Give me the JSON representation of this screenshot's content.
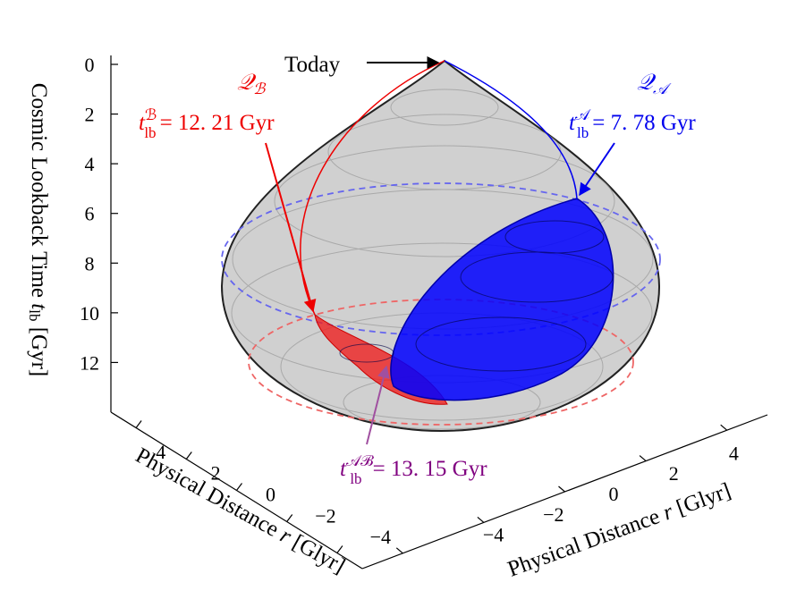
{
  "chart_data": {
    "type": "surface3d",
    "zlabel": {
      "text": "Cosmic Lookback Time ",
      "symbol": "t",
      "sub": "lb",
      "unit": " [Gyr]"
    },
    "xlabel": {
      "text": "Physical Distance ",
      "symbol": "r",
      "unit": " [Glyr]"
    },
    "ylabel": {
      "text": "Physical Distance ",
      "symbol": "r",
      "unit": " [Glyr]"
    },
    "zlim": [
      0,
      14
    ],
    "zticks": [
      0,
      2,
      4,
      6,
      8,
      10,
      12
    ],
    "xlim": [
      -5,
      5
    ],
    "xticks": [
      4,
      2,
      0,
      {
        "value": -2,
        "label": "−2"
      },
      {
        "value": -4,
        "label": "−4"
      }
    ],
    "ylim": [
      -5,
      5
    ],
    "yticks": [
      {
        "value": -4,
        "label": "−4"
      },
      {
        "value": -2,
        "label": "−2"
      },
      0,
      2,
      4
    ],
    "annotations": [
      {
        "text": "Today",
        "color": "#000000"
      },
      {
        "name": "𝒬",
        "name_sub": "ℬ",
        "symbol": "t",
        "sub": "lb",
        "sup": "ℬ",
        "value_label": "= 12. 21 Gyr",
        "color": "#ee0000"
      },
      {
        "name": "𝒬",
        "name_sub": "𝒜",
        "symbol": "t",
        "sub": "lb",
        "sup": "𝒜",
        "value_label": "= 7. 78 Gyr",
        "color": "#0000ee"
      },
      {
        "symbol": "t",
        "sub": "lb",
        "sup": "𝒜ℬ",
        "value_label": "= 13. 15 Gyr",
        "color": "#800080"
      }
    ]
  }
}
